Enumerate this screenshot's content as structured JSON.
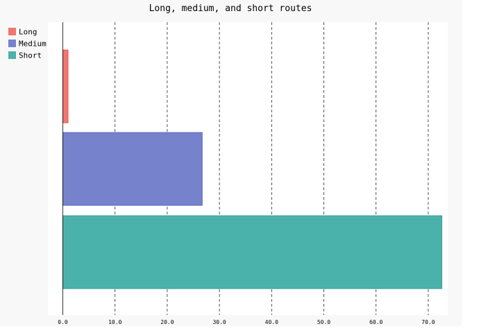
{
  "chart_data": {
    "type": "bar",
    "orientation": "horizontal",
    "title": "Long, medium, and short routes",
    "xlabel": "",
    "ylabel": "",
    "xlim": [
      0,
      74
    ],
    "grid": true,
    "legend_position": "top-left",
    "x_ticks": [
      "0.0",
      "10.0",
      "20.0",
      "30.0",
      "40.0",
      "50.0",
      "60.0",
      "70.0"
    ],
    "x_tick_values": [
      0,
      10,
      20,
      30,
      40,
      50,
      60,
      70
    ],
    "series": [
      {
        "name": "Long",
        "values": [
          1.0
        ],
        "color": "#f07670",
        "stroke": "#f5524a"
      },
      {
        "name": "Medium",
        "values": [
          26.7
        ],
        "color": "#7682cc",
        "stroke": "#5a68c0"
      },
      {
        "name": "Short",
        "values": [
          72.6
        ],
        "color": "#4ab2ab",
        "stroke": "#2f9c94"
      }
    ]
  }
}
